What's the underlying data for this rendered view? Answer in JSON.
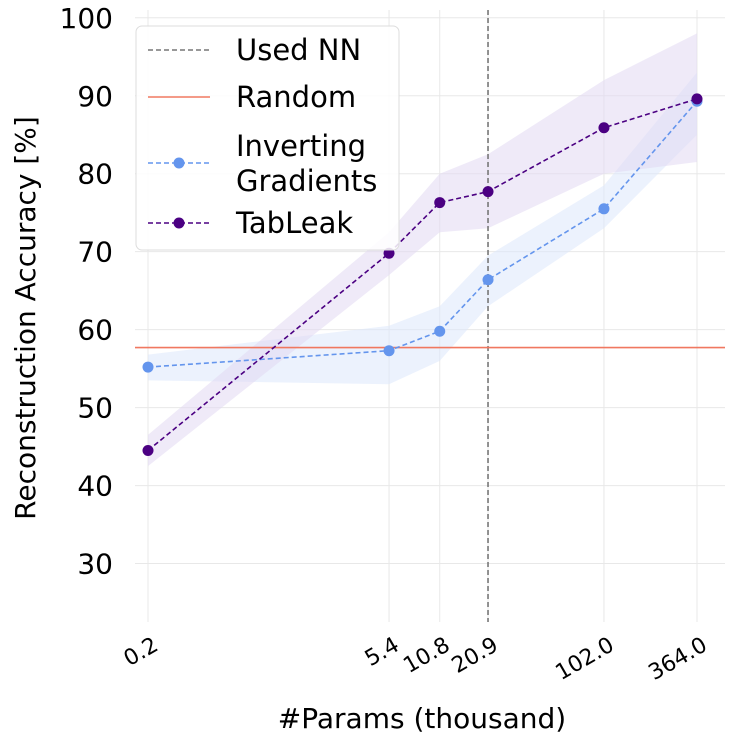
{
  "chart_data": {
    "type": "line",
    "xlabel": "#Params (thousand)",
    "ylabel": "Reconstruction Accuracy [%]",
    "ylim": [
      22.5,
      101
    ],
    "yticks": [
      30,
      40,
      50,
      60,
      70,
      80,
      90,
      100
    ],
    "x_scale": "log",
    "x": [
      0.2,
      5.4,
      10.8,
      20.9,
      102.0,
      364.0
    ],
    "x_tick_labels": [
      "0.2",
      "5.4",
      "10.8",
      "20.9",
      "102.0",
      "364.0"
    ],
    "grid": true,
    "legend_position": "top-left",
    "reference_lines": [
      {
        "name": "Used NN",
        "orientation": "vertical",
        "x": 20.9,
        "color": "#777777",
        "style": "dashed"
      },
      {
        "name": "Random",
        "orientation": "horizontal",
        "y": 57.7,
        "color": "#f07860",
        "style": "solid"
      }
    ],
    "series": [
      {
        "name": "Inverting\nGradients",
        "color": "#6495ed",
        "band_color": "#dce8fb",
        "values": [
          55.2,
          57.3,
          59.8,
          66.4,
          75.5,
          89.3
        ],
        "lower": [
          53.5,
          53.0,
          56.0,
          63.0,
          73.0,
          85.0
        ],
        "upper": [
          56.8,
          60.5,
          63.0,
          69.5,
          78.5,
          93.0
        ]
      },
      {
        "name": "TabLeak",
        "color": "#4b0082",
        "band_color": "#e2d9f2",
        "values": [
          44.5,
          69.8,
          76.3,
          77.7,
          85.9,
          89.6
        ],
        "lower": [
          42.5,
          67.0,
          72.5,
          73.0,
          80.0,
          81.5
        ],
        "upper": [
          46.5,
          72.5,
          80.0,
          82.5,
          92.0,
          98.0
        ]
      }
    ]
  }
}
